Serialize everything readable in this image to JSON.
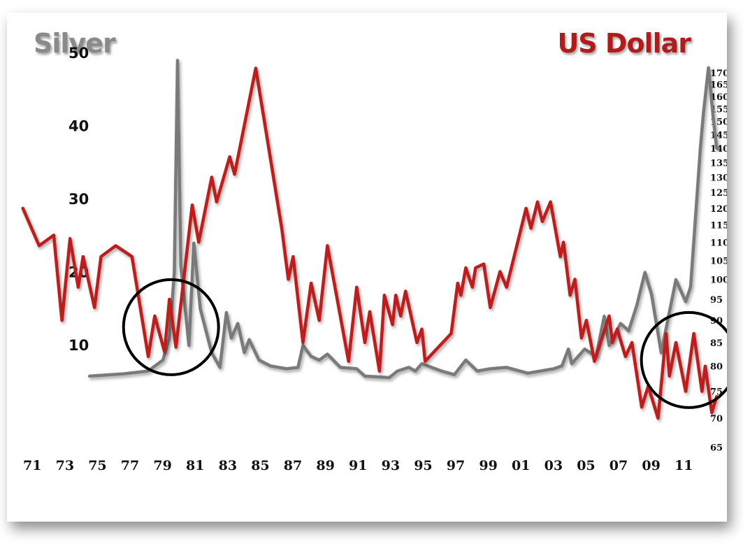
{
  "colors": {
    "silver": "#7a7a7a",
    "usd": "#c01b1b",
    "circle": "#000000"
  },
  "chart_data": {
    "type": "line",
    "title_left": "Silver",
    "title_right": "US Dollar",
    "x_ticks": [
      "71",
      "73",
      "75",
      "77",
      "79",
      "81",
      "83",
      "85",
      "87",
      "89",
      "91",
      "93",
      "95",
      "97",
      "99",
      "01",
      "03",
      "05",
      "07",
      "09",
      "11"
    ],
    "x_range": [
      1971,
      2012.5
    ],
    "y_left": {
      "ticks": [
        10,
        20,
        30,
        40,
        50
      ],
      "range": [
        0,
        50
      ]
    },
    "y_right": {
      "ticks": [
        65,
        70,
        75,
        80,
        85,
        90,
        95,
        100,
        105,
        110,
        115,
        120,
        125,
        130,
        135,
        140,
        145,
        150,
        155,
        160,
        165,
        170
      ],
      "log": true
    },
    "series": [
      {
        "name": "US Dollar",
        "axis": "right",
        "points": [
          [
            1970.9,
            120
          ],
          [
            1971.9,
            109
          ],
          [
            1972.8,
            112
          ],
          [
            1973.3,
            90
          ],
          [
            1973.8,
            111
          ],
          [
            1974.3,
            98
          ],
          [
            1974.6,
            106
          ],
          [
            1975.3,
            93
          ],
          [
            1975.7,
            106
          ],
          [
            1976.6,
            109
          ],
          [
            1977.6,
            106
          ],
          [
            1978.6,
            82
          ],
          [
            1979.0,
            91
          ],
          [
            1979.6,
            83
          ],
          [
            1979.9,
            95
          ],
          [
            1980.3,
            84
          ],
          [
            1981.3,
            121
          ],
          [
            1981.7,
            110
          ],
          [
            1982.5,
            130
          ],
          [
            1982.8,
            122
          ],
          [
            1983.6,
            137
          ],
          [
            1983.9,
            131
          ],
          [
            1985.2,
            172
          ],
          [
            1986.8,
            114
          ],
          [
            1987.2,
            100
          ],
          [
            1987.5,
            106
          ],
          [
            1988.1,
            85
          ],
          [
            1988.6,
            99
          ],
          [
            1989.1,
            90
          ],
          [
            1989.6,
            109
          ],
          [
            1990.9,
            81
          ],
          [
            1991.4,
            98
          ],
          [
            1991.9,
            85
          ],
          [
            1992.2,
            92
          ],
          [
            1992.8,
            79
          ],
          [
            1993.1,
            96
          ],
          [
            1993.6,
            89
          ],
          [
            1993.8,
            96
          ],
          [
            1994.1,
            91
          ],
          [
            1994.4,
            97
          ],
          [
            1995.1,
            85
          ],
          [
            1995.4,
            88
          ],
          [
            1995.6,
            81
          ],
          [
            1997.2,
            87
          ],
          [
            1997.6,
            99
          ],
          [
            1997.8,
            96
          ],
          [
            1998.1,
            103
          ],
          [
            1998.5,
            98
          ],
          [
            1998.7,
            103
          ],
          [
            1999.2,
            104
          ],
          [
            1999.6,
            93
          ],
          [
            2000.2,
            102
          ],
          [
            2000.6,
            98
          ],
          [
            2001.8,
            120
          ],
          [
            2002.1,
            114
          ],
          [
            2002.5,
            122
          ],
          [
            2002.8,
            116
          ],
          [
            2003.3,
            122
          ],
          [
            2003.9,
            106
          ],
          [
            2004.1,
            110
          ],
          [
            2004.5,
            96
          ],
          [
            2004.8,
            100
          ],
          [
            2005.2,
            86
          ],
          [
            2005.5,
            90
          ],
          [
            2006.0,
            81
          ],
          [
            2006.9,
            91
          ],
          [
            2007.1,
            85
          ],
          [
            2007.4,
            88
          ],
          [
            2007.9,
            82
          ],
          [
            2008.3,
            85
          ],
          [
            2008.9,
            72
          ],
          [
            2009.3,
            76
          ],
          [
            2009.9,
            70
          ],
          [
            2010.4,
            87
          ],
          [
            2010.6,
            78
          ],
          [
            2011.0,
            85
          ],
          [
            2011.6,
            75
          ],
          [
            2012.1,
            87
          ],
          [
            2012.6,
            75
          ],
          [
            2012.8,
            80
          ],
          [
            2013.2,
            71
          ],
          [
            2013.5,
            74
          ]
        ]
      },
      {
        "name": "Silver",
        "axis": "left",
        "points": [
          [
            1975.0,
            5.8
          ],
          [
            1977.0,
            6.1
          ],
          [
            1978.6,
            6.5
          ],
          [
            1979.5,
            8.0
          ],
          [
            1979.9,
            11.0
          ],
          [
            1980.2,
            20.0
          ],
          [
            1980.4,
            49.0
          ],
          [
            1980.6,
            21.0
          ],
          [
            1981.1,
            10.0
          ],
          [
            1981.4,
            24.0
          ],
          [
            1981.8,
            15.0
          ],
          [
            1982.5,
            9.0
          ],
          [
            1983.0,
            7.0
          ],
          [
            1983.4,
            14.5
          ],
          [
            1983.7,
            11.0
          ],
          [
            1984.1,
            13.0
          ],
          [
            1984.5,
            9.0
          ],
          [
            1984.8,
            10.8
          ],
          [
            1985.4,
            8.0
          ],
          [
            1986.1,
            7.2
          ],
          [
            1987.1,
            6.8
          ],
          [
            1987.8,
            7.0
          ],
          [
            1988.1,
            10.0
          ],
          [
            1988.6,
            8.5
          ],
          [
            1989.1,
            8.0
          ],
          [
            1989.6,
            8.8
          ],
          [
            1990.4,
            7.0
          ],
          [
            1991.4,
            6.8
          ],
          [
            1991.9,
            5.8
          ],
          [
            1993.4,
            5.6
          ],
          [
            1993.9,
            6.5
          ],
          [
            1994.6,
            7.0
          ],
          [
            1995.0,
            6.5
          ],
          [
            1995.4,
            7.5
          ],
          [
            1996.6,
            6.5
          ],
          [
            1997.4,
            6.0
          ],
          [
            1998.1,
            8.0
          ],
          [
            1998.8,
            6.5
          ],
          [
            1999.6,
            6.8
          ],
          [
            2000.6,
            7.0
          ],
          [
            2001.9,
            6.2
          ],
          [
            2003.5,
            6.8
          ],
          [
            2004.0,
            7.2
          ],
          [
            2004.4,
            9.5
          ],
          [
            2004.6,
            7.5
          ],
          [
            2005.4,
            9.5
          ],
          [
            2006.1,
            8.5
          ],
          [
            2006.6,
            14.0
          ],
          [
            2006.9,
            10.0
          ],
          [
            2007.6,
            13.0
          ],
          [
            2008.1,
            12.0
          ],
          [
            2008.6,
            15.5
          ],
          [
            2009.1,
            20.0
          ],
          [
            2009.5,
            17.0
          ],
          [
            2010.1,
            9.0
          ],
          [
            2011.0,
            19.0
          ],
          [
            2011.6,
            16.0
          ],
          [
            2011.9,
            18.0
          ],
          [
            2012.5,
            37.0
          ],
          [
            2012.7,
            42.0
          ],
          [
            2013.0,
            48.0
          ],
          [
            2013.3,
            41.0
          ],
          [
            2013.5,
            37.0
          ]
        ]
      }
    ],
    "annotations": [
      {
        "shape": "circle",
        "x": 1980.0,
        "y_left": 12.5
      },
      {
        "shape": "circle",
        "x": 2011.8,
        "y_left": 8.0
      }
    ]
  }
}
